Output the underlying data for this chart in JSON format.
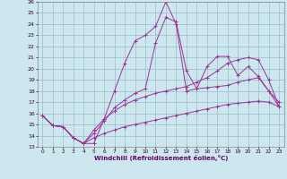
{
  "xlabel": "Windchill (Refroidissement éolien,°C)",
  "background_color": "#cce8ee",
  "grid_color": "#99bbcc",
  "line_color": "#993399",
  "xlim": [
    -0.5,
    23.5
  ],
  "ylim": [
    13,
    26
  ],
  "yticks": [
    13,
    14,
    15,
    16,
    17,
    18,
    19,
    20,
    21,
    22,
    23,
    24,
    25,
    26
  ],
  "xticks": [
    0,
    1,
    2,
    3,
    4,
    5,
    6,
    7,
    8,
    9,
    10,
    11,
    12,
    13,
    14,
    15,
    16,
    17,
    18,
    19,
    20,
    21,
    22,
    23
  ],
  "series": [
    [
      15.8,
      14.9,
      14.8,
      13.8,
      13.3,
      13.3,
      15.5,
      18.0,
      20.5,
      22.5,
      23.0,
      23.8,
      26.0,
      24.0,
      18.0,
      18.2,
      20.2,
      21.1,
      21.1,
      19.4,
      20.2,
      19.3,
      18.0,
      17.0
    ],
    [
      15.8,
      14.9,
      14.8,
      13.8,
      13.3,
      14.2,
      15.3,
      16.5,
      17.2,
      17.8,
      18.2,
      22.3,
      24.6,
      24.2,
      19.8,
      18.2,
      18.3,
      18.4,
      18.5,
      18.8,
      19.0,
      19.2,
      18.0,
      16.6
    ],
    [
      15.8,
      14.9,
      14.8,
      13.8,
      13.3,
      14.5,
      15.5,
      16.2,
      16.8,
      17.2,
      17.5,
      17.8,
      18.0,
      18.2,
      18.4,
      18.8,
      19.2,
      19.8,
      20.5,
      20.8,
      21.0,
      20.8,
      19.0,
      16.6
    ],
    [
      15.8,
      14.9,
      14.8,
      13.8,
      13.3,
      13.8,
      14.2,
      14.5,
      14.8,
      15.0,
      15.2,
      15.4,
      15.6,
      15.8,
      16.0,
      16.2,
      16.4,
      16.6,
      16.8,
      16.9,
      17.0,
      17.1,
      17.0,
      16.6
    ]
  ]
}
